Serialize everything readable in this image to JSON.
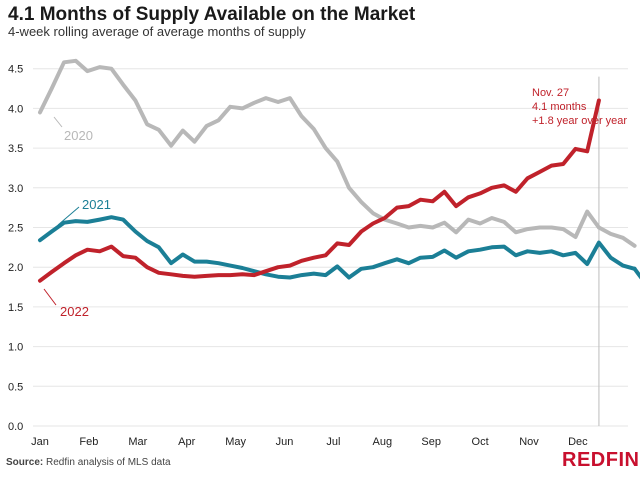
{
  "title": "4.1 Months of Supply Available on the Market",
  "subtitle": "4-week rolling average of average months of supply",
  "source": {
    "label": "Source:",
    "text": "Redfin analysis of MLS data"
  },
  "brand": "REDFIN",
  "colors": {
    "s2020": "#b8b8b8",
    "s2021": "#1b7f96",
    "s2022": "#c0222b",
    "grid": "#e6e6e6",
    "marker": "#bdbdbd"
  },
  "chart_data": {
    "type": "line",
    "title": "4.1 Months of Supply Available on the Market",
    "subtitle": "4-week rolling average of average months of supply",
    "xlabel": "",
    "ylabel": "",
    "ylim": [
      0,
      4.5
    ],
    "grid": true,
    "x_ticks": [
      "Jan",
      "Feb",
      "Mar",
      "Apr",
      "May",
      "Jun",
      "Jul",
      "Aug",
      "Sep",
      "Oct",
      "Nov",
      "Dec"
    ],
    "y_ticks": [
      "0.0",
      "0.5",
      "1.0",
      "1.5",
      "2.0",
      "2.5",
      "3.0",
      "3.5",
      "4.0",
      "4.5"
    ],
    "series": [
      {
        "name": "2020",
        "color": "#b8b8b8",
        "labelled": true,
        "x": [
          0,
          0.24,
          0.49,
          0.73,
          0.97,
          1.22,
          1.46,
          1.7,
          1.95,
          2.19,
          2.43,
          2.68,
          2.92,
          3.16,
          3.41,
          3.65,
          3.89,
          4.14,
          4.38,
          4.62,
          4.87,
          5.11,
          5.35,
          5.6,
          5.84,
          6.08,
          6.32,
          6.57,
          6.81,
          7.05,
          7.3,
          7.54,
          7.78,
          8.03,
          8.27,
          8.51,
          8.76,
          9,
          9.24,
          9.49,
          9.73,
          9.97,
          10.22,
          10.46,
          10.7,
          10.95,
          11.19,
          11.43
        ],
        "values": [
          3.95,
          4.25,
          4.58,
          4.6,
          4.47,
          4.52,
          4.5,
          4.3,
          4.1,
          3.8,
          3.73,
          3.53,
          3.72,
          3.58,
          3.78,
          3.85,
          4.02,
          4.0,
          4.07,
          4.13,
          4.08,
          4.13,
          3.9,
          3.74,
          3.5,
          3.33,
          3.0,
          2.82,
          2.68,
          2.6,
          2.55,
          2.5,
          2.52,
          2.5,
          2.56,
          2.44,
          2.6,
          2.55,
          2.62,
          2.57,
          2.44,
          2.48,
          2.5,
          2.5,
          2.48,
          2.38,
          2.7,
          2.5
        ]
      },
      {
        "name": "",
        "color": "#b8b8b8",
        "labelled": false,
        "x": [
          11.43,
          11.67,
          11.92,
          12.16
        ],
        "values": [
          2.5,
          2.42,
          2.37,
          2.27
        ]
      },
      {
        "name": "2021",
        "color": "#1b7f96",
        "labelled": true,
        "x": [
          0,
          0.24,
          0.49,
          0.73,
          0.97,
          1.22,
          1.46,
          1.7,
          1.95,
          2.19,
          2.43,
          2.68,
          2.92,
          3.16,
          3.41,
          3.65,
          3.89,
          4.14,
          4.38,
          4.62,
          4.87,
          5.11,
          5.35,
          5.6,
          5.84,
          6.08,
          6.32,
          6.57,
          6.81,
          7.05,
          7.3,
          7.54,
          7.78,
          8.03,
          8.27,
          8.51,
          8.76,
          9,
          9.24,
          9.49,
          9.73,
          9.97,
          10.22,
          10.46,
          10.7,
          10.95,
          11.19,
          11.43,
          11.67,
          11.92,
          12.16
        ],
        "values": [
          2.34,
          2.45,
          2.56,
          2.58,
          2.57,
          2.6,
          2.63,
          2.6,
          2.45,
          2.33,
          2.25,
          2.05,
          2.16,
          2.07,
          2.07,
          2.05,
          2.02,
          1.99,
          1.95,
          1.91,
          1.88,
          1.87,
          1.9,
          1.92,
          1.9,
          2.01,
          1.87,
          1.98,
          2.0,
          2.05,
          2.1,
          2.05,
          2.12,
          2.13,
          2.21,
          2.12,
          2.2,
          2.22,
          2.25,
          2.26,
          2.15,
          2.2,
          2.18,
          2.2,
          2.15,
          2.18,
          2.04,
          2.31,
          2.12,
          2.02,
          1.98
        ]
      },
      {
        "name": "",
        "color": "#1b7f96",
        "labelled": false,
        "x": [
          12.16,
          12.4
        ],
        "values": [
          1.98,
          1.78
        ]
      },
      {
        "name": "2022",
        "color": "#c0222b",
        "labelled": true,
        "x": [
          0,
          0.24,
          0.49,
          0.73,
          0.97,
          1.22,
          1.46,
          1.7,
          1.95,
          2.19,
          2.43,
          2.68,
          2.92,
          3.16,
          3.41,
          3.65,
          3.89,
          4.14,
          4.38,
          4.62,
          4.87,
          5.11,
          5.35,
          5.6,
          5.84,
          6.08,
          6.32,
          6.57,
          6.81,
          7.05,
          7.3,
          7.54,
          7.78,
          8.03,
          8.27,
          8.51,
          8.76,
          9,
          9.24,
          9.49,
          9.73,
          9.97,
          10.22,
          10.46,
          10.7,
          10.95,
          11.19,
          11.43
        ],
        "values": [
          1.83,
          1.94,
          2.05,
          2.15,
          2.22,
          2.2,
          2.26,
          2.14,
          2.12,
          2.0,
          1.93,
          1.91,
          1.89,
          1.88,
          1.89,
          1.9,
          1.9,
          1.91,
          1.9,
          1.95,
          2.0,
          2.02,
          2.08,
          2.12,
          2.15,
          2.3,
          2.28,
          2.45,
          2.55,
          2.62,
          2.75,
          2.77,
          2.85,
          2.83,
          2.95,
          2.77,
          2.88,
          2.93,
          3.0,
          3.03,
          2.95,
          3.12,
          3.2,
          3.28,
          3.3,
          3.49,
          3.46,
          4.1
        ]
      }
    ],
    "series_labels": [
      "2020",
      "2021",
      "2022"
    ],
    "annotation": {
      "lines": [
        "Nov. 27",
        "4.1 months",
        "+1.8 year over year"
      ]
    }
  }
}
